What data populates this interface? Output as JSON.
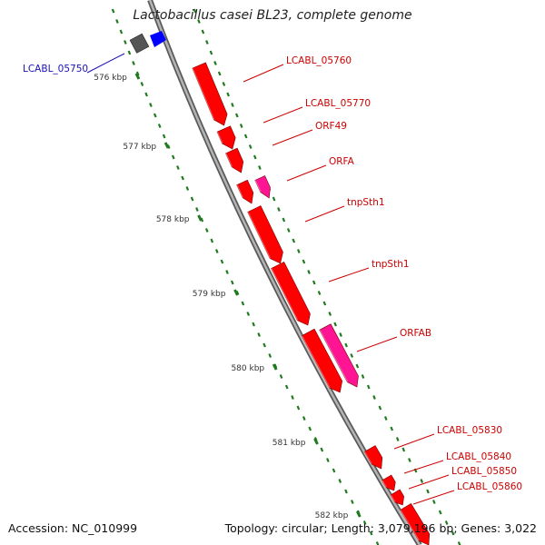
{
  "title": "Lactobacillus casei BL23, complete genome",
  "accession": "Accession: NC_010999",
  "topology": "Topology: circular; Length: 3,079,196 bp; Genes: 3,022",
  "ticks": [
    "576 kbp",
    "577 kbp",
    "578 kbp",
    "579 kbp",
    "580 kbp",
    "581 kbp",
    "582 kbp"
  ],
  "genes": [
    {
      "id": "g-05750",
      "name": "LCABL_05750",
      "color": "#1a10b4",
      "label": true
    },
    {
      "id": "g-05760",
      "name": "LCABL_05760",
      "color": "#cc0000",
      "label": true
    },
    {
      "id": "g-05770",
      "name": "LCABL_05770",
      "color": "#cc0000",
      "label": true
    },
    {
      "id": "g-orf49",
      "name": "ORF49",
      "color": "#cc0000",
      "label": true
    },
    {
      "id": "g-orfa",
      "name": "ORFA",
      "color": "#cc0000",
      "label": true
    },
    {
      "id": "g-tnp1",
      "name": "tnpSth1",
      "color": "#cc0000",
      "label": true
    },
    {
      "id": "g-tnp2",
      "name": "tnpSth1",
      "color": "#cc0000",
      "label": true
    },
    {
      "id": "g-orfab",
      "name": "ORFAB",
      "color": "#cc0000",
      "label": true
    },
    {
      "id": "g-05830",
      "name": "LCABL_05830",
      "color": "#cc0000",
      "label": true
    },
    {
      "id": "g-05840",
      "name": "LCABL_05840",
      "color": "#cc0000",
      "label": true
    },
    {
      "id": "g-05850",
      "name": "LCABL_05850",
      "color": "#cc0000",
      "label": true
    },
    {
      "id": "g-05860",
      "name": "LCABL_05860",
      "color": "#cc0000",
      "label": true
    }
  ],
  "colors": {
    "gene_red": "#ff0000",
    "gene_pink": "#ff1493",
    "gene_blue": "#0000ff",
    "gene_gray": "#555555",
    "backbone": "#8c8c8c",
    "tick_green": "#1f7a1f",
    "label_red": "#cc0000",
    "label_blue": "#1a10b4"
  }
}
